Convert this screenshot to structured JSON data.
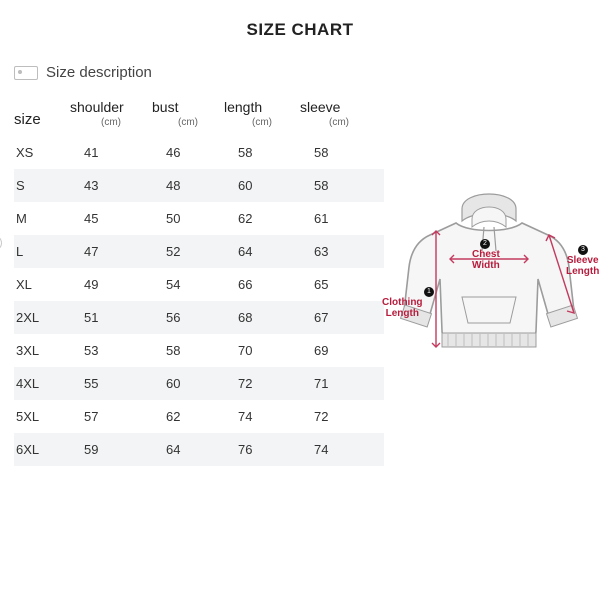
{
  "title": "SIZE CHART",
  "description": "Size description",
  "columns": [
    {
      "label": "size",
      "sub": ""
    },
    {
      "label": "shoulder",
      "sub": "(cm)"
    },
    {
      "label": "bust",
      "sub": "(cm)"
    },
    {
      "label": "length",
      "sub": "(cm)"
    },
    {
      "label": "sleeve",
      "sub": "(cm)"
    }
  ],
  "rows": [
    {
      "size": "XS",
      "shoulder": "41",
      "bust": "46",
      "length": "58",
      "sleeve": "58"
    },
    {
      "size": "S",
      "shoulder": "43",
      "bust": "48",
      "length": "60",
      "sleeve": "58"
    },
    {
      "size": "M",
      "shoulder": "45",
      "bust": "50",
      "length": "62",
      "sleeve": "61"
    },
    {
      "size": "L",
      "shoulder": "47",
      "bust": "52",
      "length": "64",
      "sleeve": "63"
    },
    {
      "size": "XL",
      "shoulder": "49",
      "bust": "54",
      "length": "66",
      "sleeve": "65"
    },
    {
      "size": "2XL",
      "shoulder": "51",
      "bust": "56",
      "length": "68",
      "sleeve": "67"
    },
    {
      "size": "3XL",
      "shoulder": "53",
      "bust": "58",
      "length": "70",
      "sleeve": "69"
    },
    {
      "size": "4XL",
      "shoulder": "55",
      "bust": "60",
      "length": "72",
      "sleeve": "71"
    },
    {
      "size": "5XL",
      "shoulder": "57",
      "bust": "62",
      "length": "74",
      "sleeve": "72"
    },
    {
      "size": "6XL",
      "shoulder": "59",
      "bust": "64",
      "length": "76",
      "sleeve": "74"
    }
  ],
  "diagram": {
    "hoodie": {
      "fill": "#f6f6f6",
      "stroke": "#9c9c9c",
      "hood_fill": "#e6e6e6",
      "rib_fill": "#e6e6e6",
      "rib_stroke": "#bfbfbf",
      "arrow": "#c33a5e"
    },
    "labels": {
      "clothing_length": "Clothing\nLength",
      "chest_width": "Chest\nWidth",
      "sleeve_length": "Sleeve\nLength"
    },
    "bullets": {
      "one": "1",
      "two": "2",
      "three": "3"
    }
  },
  "style": {
    "row_alt_bg": "#f3f4f5",
    "text_color": "#222222",
    "sub_color": "#666666",
    "label_color": "#b71c3d"
  }
}
